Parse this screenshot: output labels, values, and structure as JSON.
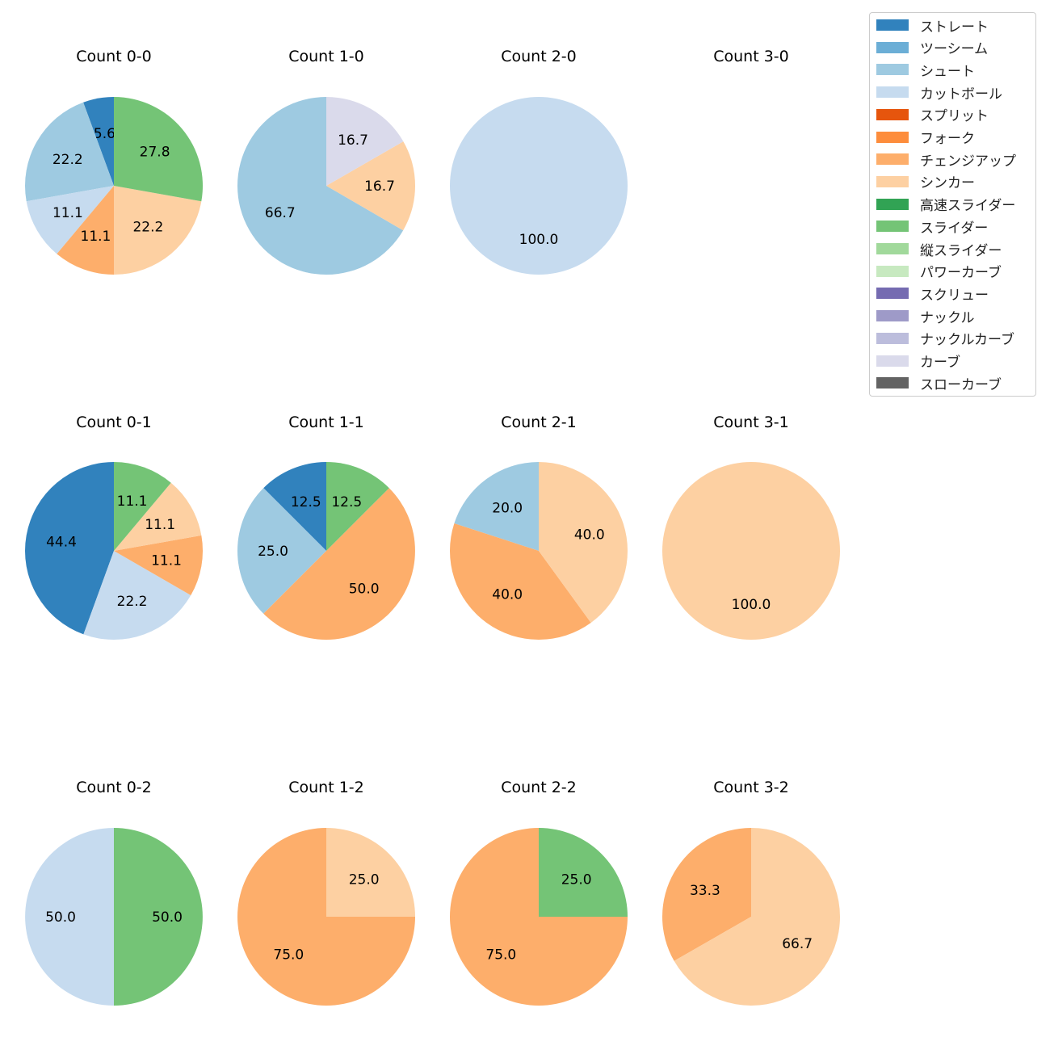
{
  "legend": {
    "entries": [
      {
        "name": "ストレート",
        "color": "#3182bd"
      },
      {
        "name": "ツーシーム",
        "color": "#6baed6"
      },
      {
        "name": "シュート",
        "color": "#9ecae1"
      },
      {
        "name": "カットボール",
        "color": "#c6dbef"
      },
      {
        "name": "スプリット",
        "color": "#e6550d"
      },
      {
        "name": "フォーク",
        "color": "#fd8d3c"
      },
      {
        "name": "チェンジアップ",
        "color": "#fdae6b"
      },
      {
        "name": "シンカー",
        "color": "#fdd0a2"
      },
      {
        "name": "高速スライダー",
        "color": "#31a354"
      },
      {
        "name": "スライダー",
        "color": "#74c476"
      },
      {
        "name": "縦スライダー",
        "color": "#a1d99b"
      },
      {
        "name": "パワーカーブ",
        "color": "#c7e9c0"
      },
      {
        "name": "スクリュー",
        "color": "#756bb1"
      },
      {
        "name": "ナックル",
        "color": "#9e9ac8"
      },
      {
        "name": "ナックルカーブ",
        "color": "#bcbddc"
      },
      {
        "name": "カーブ",
        "color": "#dadaeb"
      },
      {
        "name": "スローカーブ",
        "color": "#636363"
      }
    ]
  },
  "chart_data": [
    {
      "type": "pie",
      "title": "Count 0-0",
      "slices": [
        {
          "name": "ストレート",
          "value": 5.6
        },
        {
          "name": "シュート",
          "value": 22.2
        },
        {
          "name": "カットボール",
          "value": 11.1
        },
        {
          "name": "チェンジアップ",
          "value": 11.1
        },
        {
          "name": "シンカー",
          "value": 22.2
        },
        {
          "name": "スライダー",
          "value": 27.8
        }
      ]
    },
    {
      "type": "pie",
      "title": "Count 1-0",
      "slices": [
        {
          "name": "シュート",
          "value": 66.7
        },
        {
          "name": "シンカー",
          "value": 16.7
        },
        {
          "name": "カーブ",
          "value": 16.7
        }
      ]
    },
    {
      "type": "pie",
      "title": "Count 2-0",
      "slices": [
        {
          "name": "カットボール",
          "value": 100.0
        }
      ]
    },
    {
      "type": "pie",
      "title": "Count 3-0",
      "slices": []
    },
    {
      "type": "pie",
      "title": "Count 0-1",
      "slices": [
        {
          "name": "ストレート",
          "value": 44.4
        },
        {
          "name": "カットボール",
          "value": 22.2
        },
        {
          "name": "チェンジアップ",
          "value": 11.1
        },
        {
          "name": "シンカー",
          "value": 11.1
        },
        {
          "name": "スライダー",
          "value": 11.1
        }
      ]
    },
    {
      "type": "pie",
      "title": "Count 1-1",
      "slices": [
        {
          "name": "ストレート",
          "value": 12.5
        },
        {
          "name": "シュート",
          "value": 25.0
        },
        {
          "name": "チェンジアップ",
          "value": 50.0
        },
        {
          "name": "スライダー",
          "value": 12.5
        }
      ]
    },
    {
      "type": "pie",
      "title": "Count 2-1",
      "slices": [
        {
          "name": "シュート",
          "value": 20.0
        },
        {
          "name": "チェンジアップ",
          "value": 40.0
        },
        {
          "name": "シンカー",
          "value": 40.0
        }
      ]
    },
    {
      "type": "pie",
      "title": "Count 3-1",
      "slices": [
        {
          "name": "シンカー",
          "value": 100.0
        }
      ]
    },
    {
      "type": "pie",
      "title": "Count 0-2",
      "slices": [
        {
          "name": "カットボール",
          "value": 50.0
        },
        {
          "name": "スライダー",
          "value": 50.0
        }
      ]
    },
    {
      "type": "pie",
      "title": "Count 1-2",
      "slices": [
        {
          "name": "チェンジアップ",
          "value": 75.0
        },
        {
          "name": "シンカー",
          "value": 25.0
        }
      ]
    },
    {
      "type": "pie",
      "title": "Count 2-2",
      "slices": [
        {
          "name": "チェンジアップ",
          "value": 75.0
        },
        {
          "name": "スライダー",
          "value": 25.0
        }
      ]
    },
    {
      "type": "pie",
      "title": "Count 3-2",
      "slices": [
        {
          "name": "チェンジアップ",
          "value": 33.3
        },
        {
          "name": "シンカー",
          "value": 66.7
        }
      ]
    }
  ]
}
